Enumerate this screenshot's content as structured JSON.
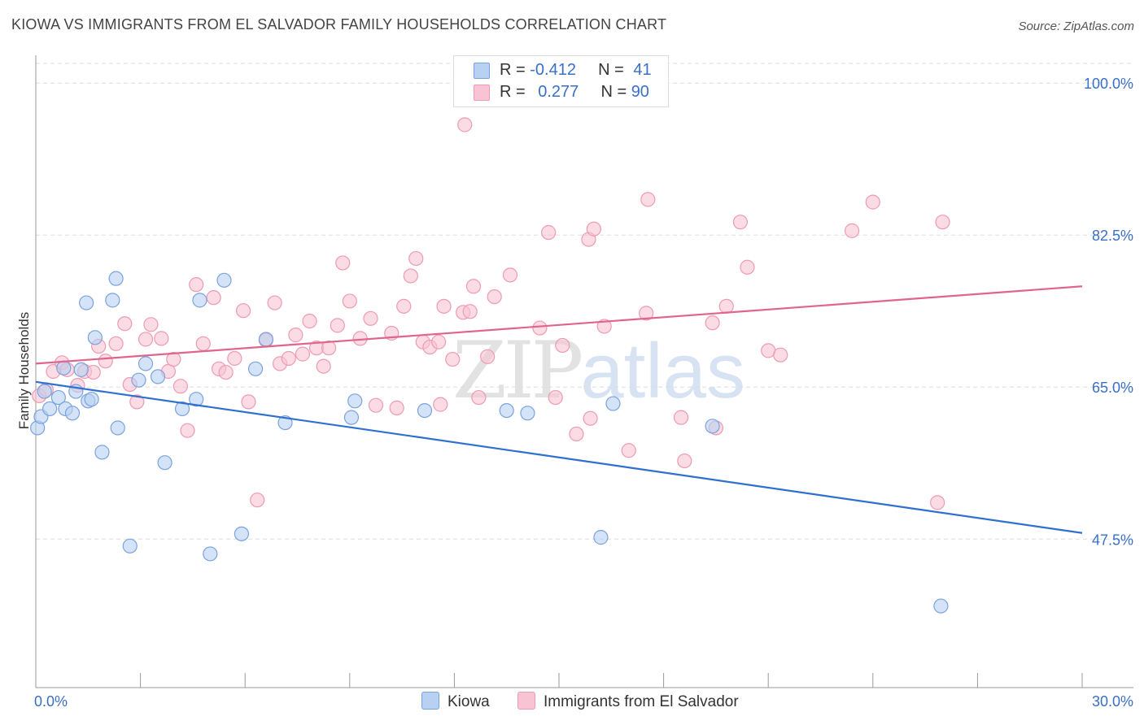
{
  "header": {
    "title": "KIOWA VS IMMIGRANTS FROM EL SALVADOR FAMILY HOUSEHOLDS CORRELATION CHART",
    "source": "Source: ZipAtlas.com"
  },
  "legend": {
    "series1": {
      "r_label": "R = ",
      "r_value": "-0.412",
      "n_label": "N = ",
      "n_value": "41"
    },
    "series2": {
      "r_label": "R = ",
      "r_value": "0.277",
      "n_label": "N = ",
      "n_value": "90"
    }
  },
  "watermark": {
    "zip": "ZIP",
    "atlas": "atlas"
  },
  "colors": {
    "kiowa_fill": "#b8d0f2",
    "kiowa_stroke": "#7aa3dd",
    "kiowa_line": "#2e6fd0",
    "salvador_fill": "#f8c3d2",
    "salvador_stroke": "#ee9ab3",
    "salvador_line": "#e0648c",
    "axis_text": "#3a6fc8",
    "grid": "#dddddd"
  },
  "chart_data": {
    "type": "scatter",
    "title": "KIOWA VS IMMIGRANTS FROM EL SALVADOR FAMILY HOUSEHOLDS CORRELATION CHART",
    "xlabel": "",
    "ylabel": "Family Households",
    "xlim": [
      0,
      30
    ],
    "ylim": [
      30.4,
      103.2
    ],
    "x_tick_labels": [
      {
        "value": 0,
        "label": "0.0%"
      },
      {
        "value": 30,
        "label": "30.0%"
      }
    ],
    "y_ticks": [
      {
        "value": 100,
        "label": "100.0%"
      },
      {
        "value": 82.5,
        "label": "82.5%"
      },
      {
        "value": 65,
        "label": "65.0%"
      },
      {
        "value": 47.5,
        "label": "47.5%"
      }
    ],
    "grid": true,
    "legend_position": "top-center",
    "series": [
      {
        "name": "Kiowa",
        "r": -0.412,
        "n": 41,
        "trend": {
          "x": [
            0,
            30
          ],
          "y": [
            65.6,
            48.2
          ]
        },
        "points": [
          [
            0.05,
            60.3
          ],
          [
            0.15,
            61.6
          ],
          [
            0.25,
            64.5
          ],
          [
            0.4,
            62.5
          ],
          [
            0.65,
            63.8
          ],
          [
            0.8,
            67.2
          ],
          [
            0.85,
            62.5
          ],
          [
            1.05,
            62.0
          ],
          [
            1.15,
            64.5
          ],
          [
            1.3,
            67.0
          ],
          [
            1.5,
            63.4
          ],
          [
            1.6,
            63.6
          ],
          [
            1.45,
            74.7
          ],
          [
            1.7,
            70.7
          ],
          [
            1.9,
            57.5
          ],
          [
            2.2,
            75.0
          ],
          [
            2.3,
            77.5
          ],
          [
            2.35,
            60.3
          ],
          [
            2.7,
            46.7
          ],
          [
            2.95,
            65.8
          ],
          [
            3.15,
            67.7
          ],
          [
            3.5,
            66.2
          ],
          [
            3.7,
            56.3
          ],
          [
            4.2,
            62.5
          ],
          [
            4.6,
            63.6
          ],
          [
            4.7,
            75.0
          ],
          [
            5.0,
            45.8
          ],
          [
            5.4,
            77.3
          ],
          [
            5.9,
            48.1
          ],
          [
            6.3,
            67.1
          ],
          [
            6.6,
            70.5
          ],
          [
            7.15,
            60.9
          ],
          [
            9.05,
            61.5
          ],
          [
            9.15,
            63.4
          ],
          [
            11.15,
            62.3
          ],
          [
            13.5,
            62.3
          ],
          [
            14.1,
            62.0
          ],
          [
            16.2,
            47.7
          ],
          [
            16.55,
            63.1
          ],
          [
            19.4,
            60.5
          ],
          [
            25.95,
            39.8
          ]
        ]
      },
      {
        "name": "Immigrants from El Salvador",
        "r": 0.277,
        "n": 90,
        "trend": {
          "x": [
            0,
            30
          ],
          "y": [
            67.7,
            76.6
          ]
        },
        "points": [
          [
            0.1,
            64.0
          ],
          [
            0.3,
            64.7
          ],
          [
            0.5,
            66.8
          ],
          [
            0.75,
            67.8
          ],
          [
            0.9,
            67.0
          ],
          [
            1.2,
            65.2
          ],
          [
            1.4,
            66.8
          ],
          [
            1.65,
            66.7
          ],
          [
            1.8,
            69.7
          ],
          [
            2.0,
            68.0
          ],
          [
            2.3,
            70.0
          ],
          [
            2.55,
            72.3
          ],
          [
            2.7,
            65.3
          ],
          [
            2.9,
            63.3
          ],
          [
            3.15,
            70.5
          ],
          [
            3.3,
            72.2
          ],
          [
            3.6,
            70.6
          ],
          [
            3.8,
            66.8
          ],
          [
            3.95,
            68.2
          ],
          [
            4.15,
            65.1
          ],
          [
            4.35,
            60.0
          ],
          [
            4.6,
            76.8
          ],
          [
            4.8,
            70.0
          ],
          [
            5.1,
            75.3
          ],
          [
            5.25,
            67.1
          ],
          [
            5.45,
            66.7
          ],
          [
            5.7,
            68.3
          ],
          [
            5.95,
            73.8
          ],
          [
            6.1,
            63.3
          ],
          [
            6.35,
            52.0
          ],
          [
            6.6,
            70.4
          ],
          [
            6.85,
            74.7
          ],
          [
            7.0,
            67.7
          ],
          [
            7.25,
            68.3
          ],
          [
            7.45,
            71.0
          ],
          [
            7.65,
            68.8
          ],
          [
            7.85,
            72.6
          ],
          [
            8.05,
            69.5
          ],
          [
            8.25,
            67.4
          ],
          [
            8.4,
            69.5
          ],
          [
            8.65,
            72.1
          ],
          [
            8.8,
            79.3
          ],
          [
            9.0,
            74.9
          ],
          [
            9.3,
            70.6
          ],
          [
            9.6,
            72.9
          ],
          [
            9.75,
            62.9
          ],
          [
            10.2,
            71.2
          ],
          [
            10.35,
            62.6
          ],
          [
            10.55,
            74.3
          ],
          [
            10.75,
            77.8
          ],
          [
            10.9,
            79.8
          ],
          [
            11.1,
            70.2
          ],
          [
            11.3,
            69.6
          ],
          [
            11.55,
            70.2
          ],
          [
            11.6,
            63.0
          ],
          [
            11.7,
            74.3
          ],
          [
            11.95,
            68.2
          ],
          [
            12.25,
            73.6
          ],
          [
            12.45,
            73.7
          ],
          [
            12.55,
            76.6
          ],
          [
            12.7,
            63.8
          ],
          [
            12.95,
            68.5
          ],
          [
            13.15,
            75.4
          ],
          [
            13.6,
            77.9
          ],
          [
            14.45,
            71.8
          ],
          [
            14.7,
            82.8
          ],
          [
            14.9,
            63.8
          ],
          [
            15.1,
            69.8
          ],
          [
            15.5,
            59.6
          ],
          [
            15.85,
            82.0
          ],
          [
            15.9,
            61.4
          ],
          [
            16.0,
            83.2
          ],
          [
            16.3,
            72.0
          ],
          [
            17.0,
            57.7
          ],
          [
            17.55,
            86.6
          ],
          [
            17.5,
            73.5
          ],
          [
            18.6,
            56.5
          ],
          [
            19.4,
            72.4
          ],
          [
            19.5,
            60.3
          ],
          [
            19.8,
            74.3
          ],
          [
            20.2,
            84.0
          ],
          [
            20.4,
            78.8
          ],
          [
            21.0,
            69.2
          ],
          [
            21.35,
            68.7
          ],
          [
            23.4,
            83.0
          ],
          [
            24.0,
            86.3
          ],
          [
            25.85,
            51.7
          ],
          [
            26.0,
            84.0
          ],
          [
            12.3,
            95.2
          ],
          [
            18.5,
            61.5
          ]
        ]
      }
    ]
  },
  "bottom_legend": {
    "kiowa_label": "Kiowa",
    "salvador_label": "Immigrants from El Salvador"
  }
}
